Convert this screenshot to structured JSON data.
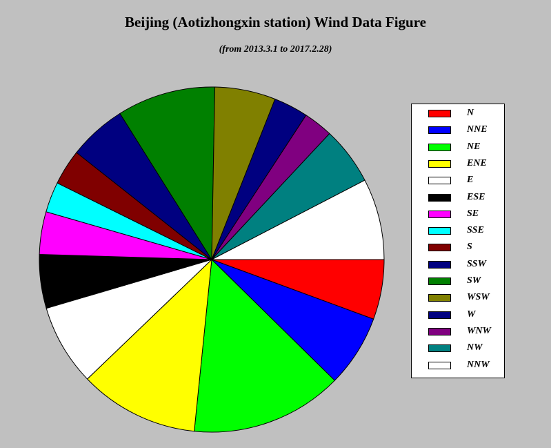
{
  "chart_data": {
    "type": "pie",
    "title": "Beijing (Aotizhongxin station) Wind Data Figure",
    "subtitle": "(from 2013.3.1 to 2017.2.28)",
    "legend_position": "right",
    "start_direction": "east",
    "direction": "clockwise",
    "slices": [
      {
        "label": "N",
        "value": 5.9,
        "color": "#ff0000"
      },
      {
        "label": "NNE",
        "value": 7.1,
        "color": "#0000ff"
      },
      {
        "label": "NE",
        "value": 15.0,
        "color": "#00ff00"
      },
      {
        "label": "ENE",
        "value": 11.8,
        "color": "#ffff00"
      },
      {
        "label": "E",
        "value": 8.0,
        "color": "#ffffff"
      },
      {
        "label": "ESE",
        "value": 5.3,
        "color": "#000000"
      },
      {
        "label": "SE",
        "value": 4.2,
        "color": "#ff00ff"
      },
      {
        "label": "SSE",
        "value": 3.0,
        "color": "#00ffff"
      },
      {
        "label": "S",
        "value": 3.5,
        "color": "#800000"
      },
      {
        "label": "SSW",
        "value": 5.7,
        "color": "#000080"
      },
      {
        "label": "SW",
        "value": 9.7,
        "color": "#008000"
      },
      {
        "label": "WSW",
        "value": 6.0,
        "color": "#808000"
      },
      {
        "label": "W",
        "value": 3.4,
        "color": "#000080"
      },
      {
        "label": "WNW",
        "value": 2.9,
        "color": "#800080"
      },
      {
        "label": "NW",
        "value": 5.7,
        "color": "#008080"
      },
      {
        "label": "NNW",
        "value": 8.0,
        "color": "#ffffff"
      }
    ]
  }
}
